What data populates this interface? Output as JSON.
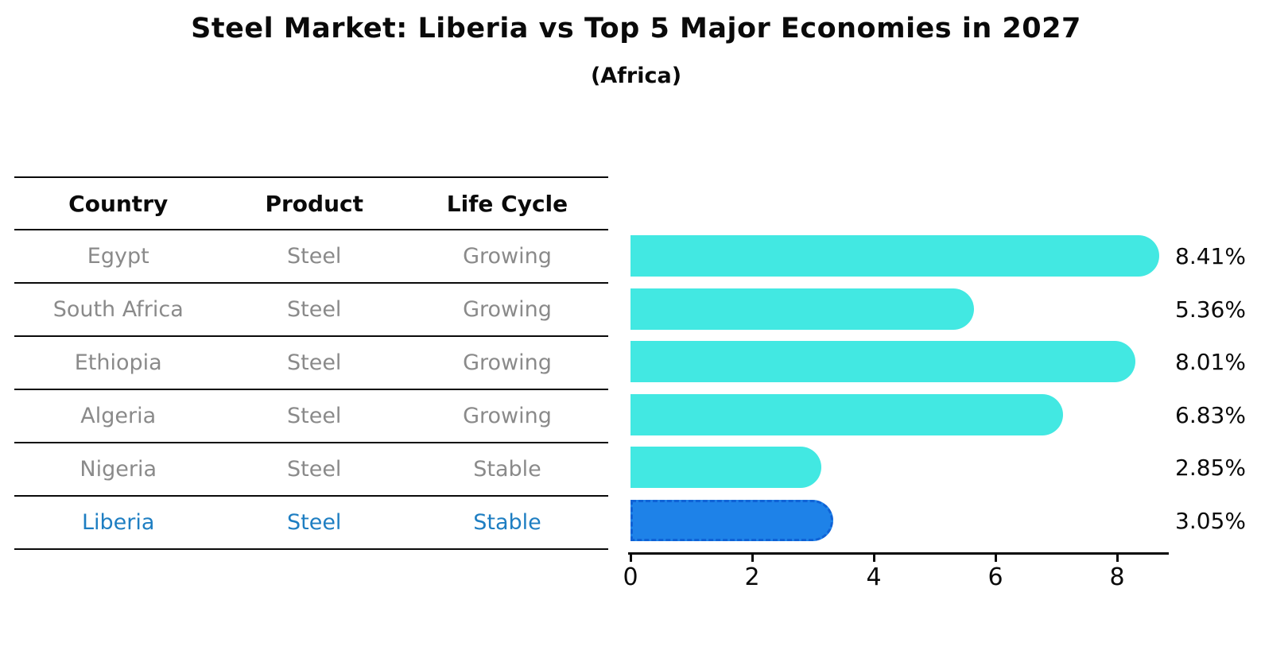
{
  "title": "Steel Market: Liberia vs Top 5 Major Economies in 2027",
  "subtitle": "(Africa)",
  "table": {
    "headers": [
      "Country",
      "Product",
      "Life Cycle"
    ],
    "rows": [
      {
        "country": "Egypt",
        "product": "Steel",
        "life_cycle": "Growing",
        "highlighted": false
      },
      {
        "country": "South Africa",
        "product": "Steel",
        "life_cycle": "Growing",
        "highlighted": false
      },
      {
        "country": "Ethiopia",
        "product": "Steel",
        "life_cycle": "Growing",
        "highlighted": false
      },
      {
        "country": "Algeria",
        "product": "Steel",
        "life_cycle": "Growing",
        "highlighted": false
      },
      {
        "country": "Nigeria",
        "product": "Steel",
        "life_cycle": "Stable",
        "highlighted": false
      },
      {
        "country": "Liberia",
        "product": "Steel",
        "life_cycle": "Stable",
        "highlighted": true
      }
    ]
  },
  "chart_data": {
    "type": "bar",
    "orientation": "horizontal",
    "title": "Steel Market: Liberia vs Top 5 Major Economies in 2027",
    "subtitle": "(Africa)",
    "categories": [
      "Egypt",
      "South Africa",
      "Ethiopia",
      "Algeria",
      "Nigeria",
      "Liberia"
    ],
    "values": [
      8.41,
      5.36,
      8.01,
      6.83,
      2.85,
      3.05
    ],
    "value_labels": [
      "8.41%",
      "5.36%",
      "8.01%",
      "6.83%",
      "2.85%",
      "3.05%"
    ],
    "highlighted_category": "Liberia",
    "x_ticks": [
      0,
      2,
      4,
      6,
      8
    ],
    "xlim": [
      0,
      8.87
    ],
    "grid": false,
    "legend": "none"
  },
  "colors": {
    "bar_default": "#42E8E2",
    "bar_highlight": "#1E82E8",
    "bar_highlight_border": "#0F62D6",
    "row_text": "#8a8a8a",
    "row_text_highlight": "#1E7EC2",
    "header_text": "#0a0a0a",
    "axis": "#0a0a0a"
  }
}
